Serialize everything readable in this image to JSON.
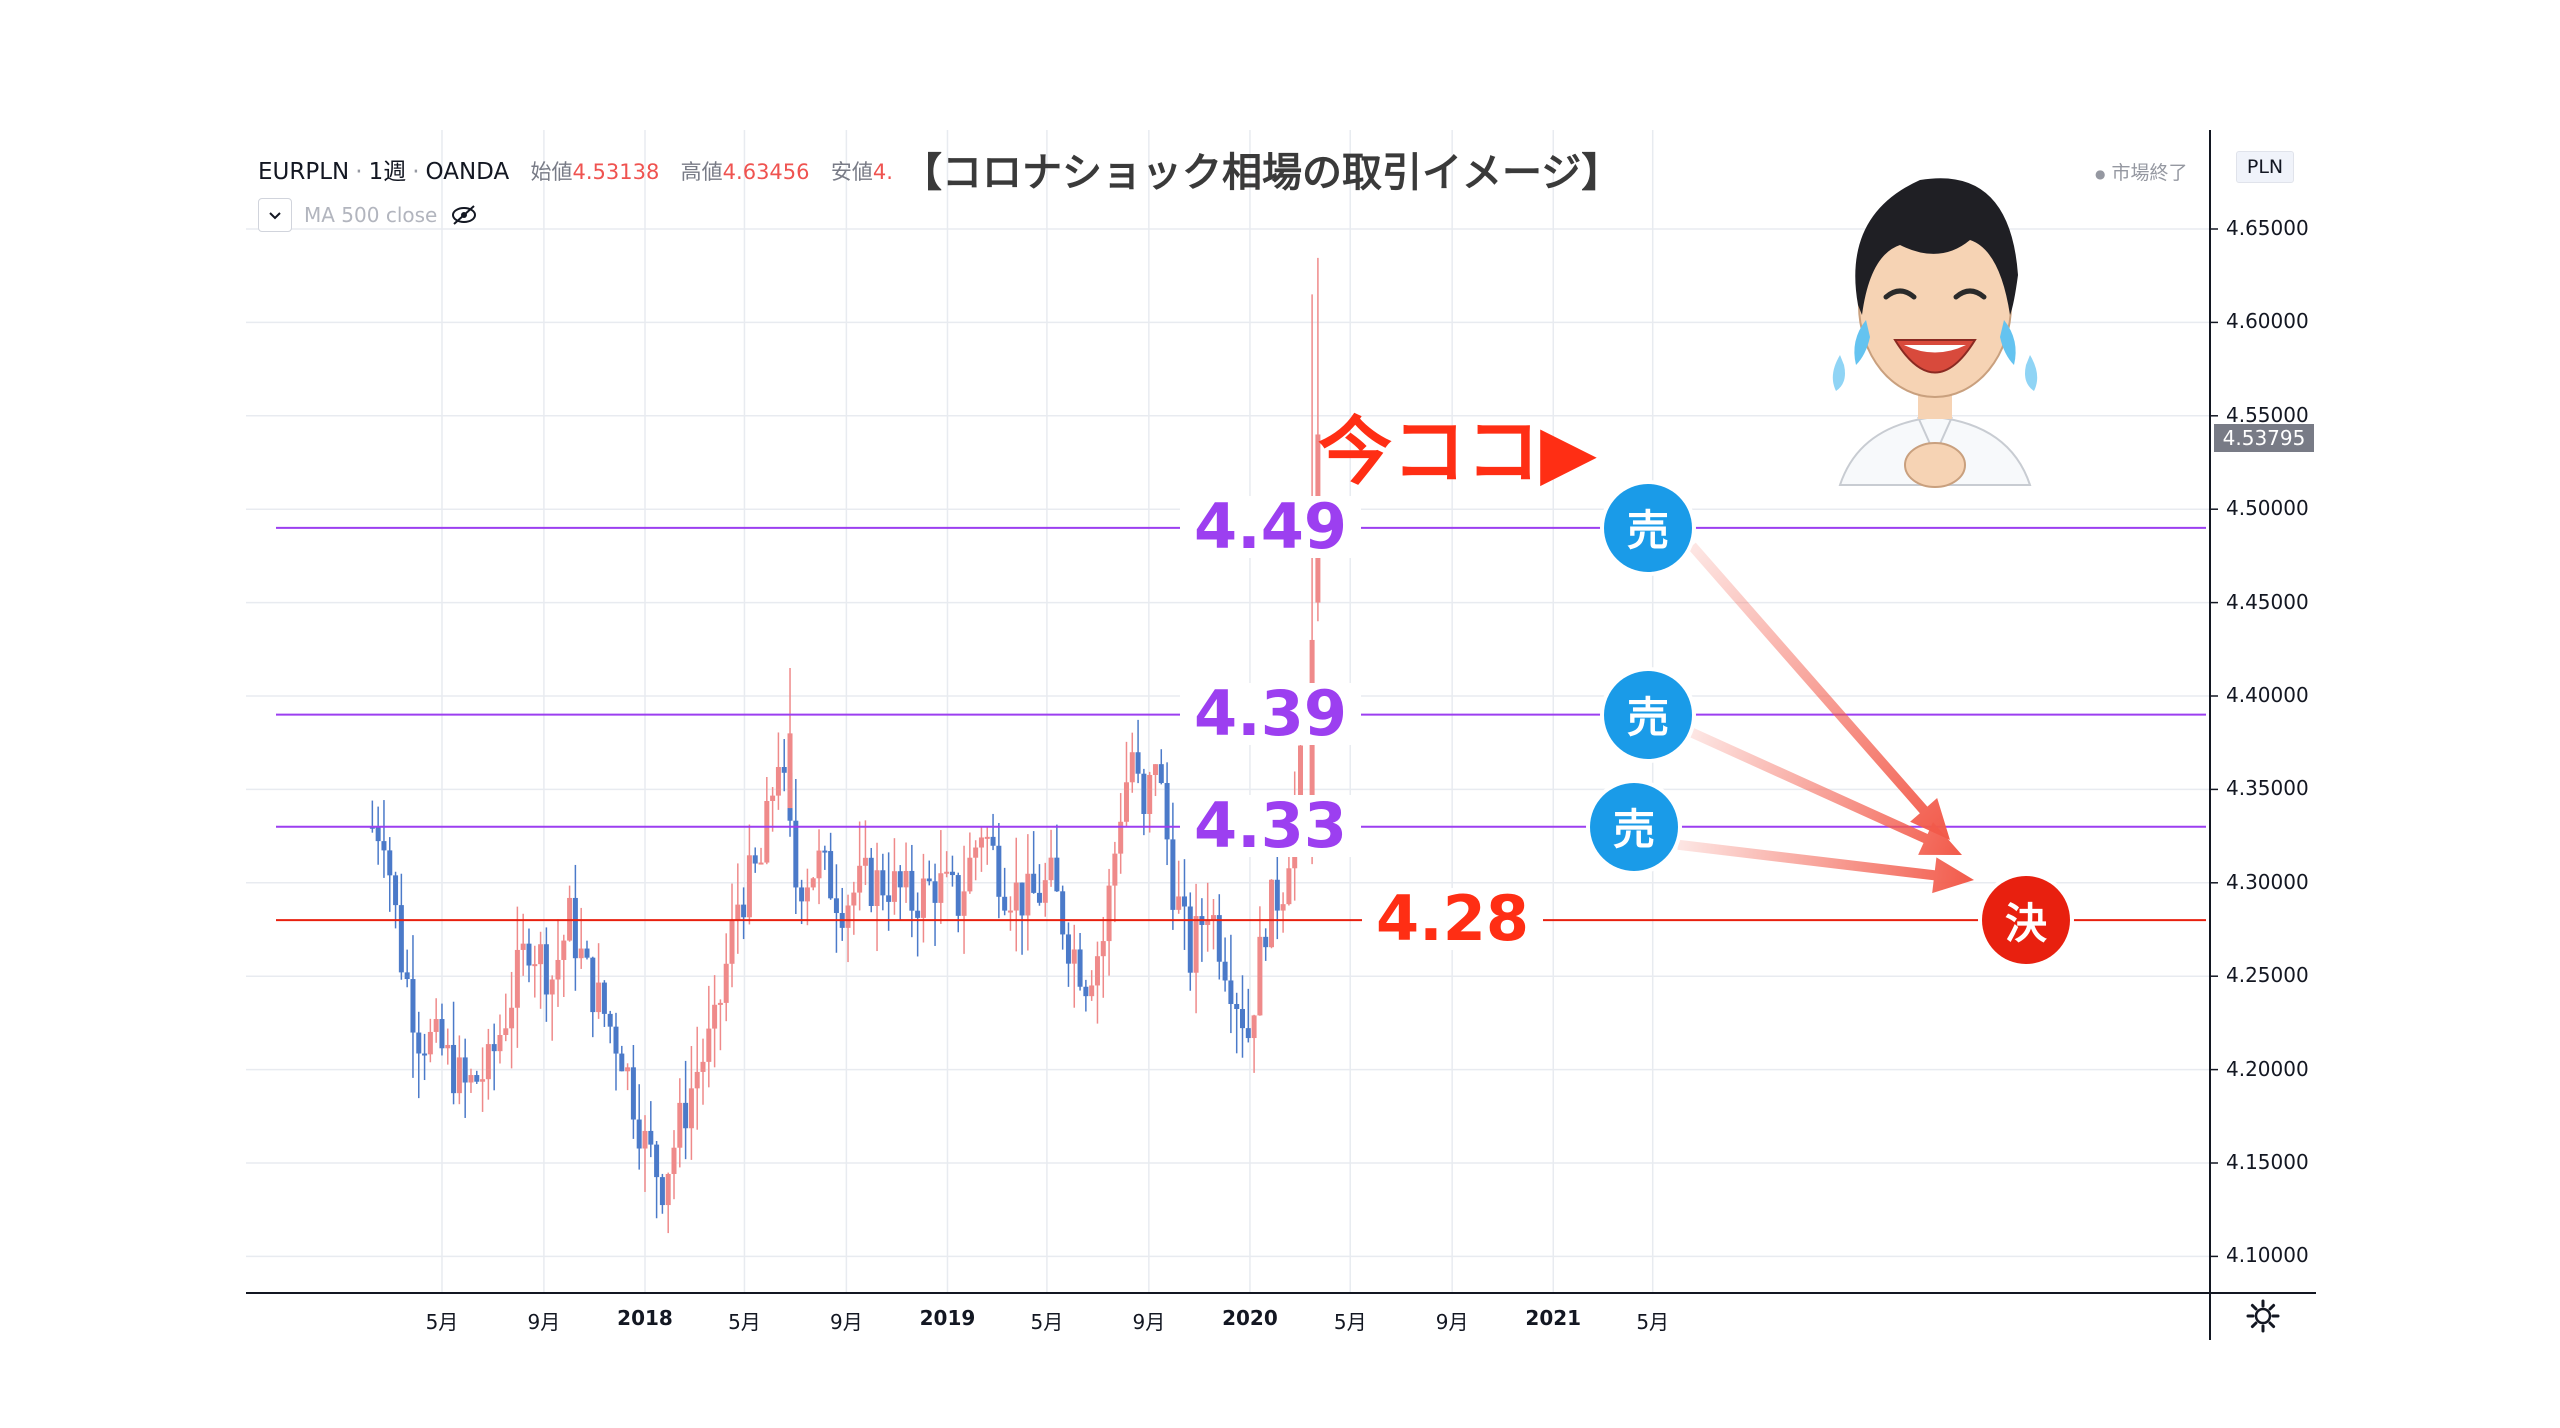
{
  "header": {
    "symbol": "EURPLN",
    "interval": "1週",
    "broker": "OANDA",
    "open_label": "始値",
    "open_value": "4.53138",
    "high_label": "高値",
    "high_value": "4.63456",
    "low_label": "安値",
    "low_value": "4.",
    "indicator": "MA 500 close"
  },
  "title": "【コロナショック相場の取引イメージ】",
  "market_status": "市場終了",
  "currency": "PLN",
  "current_price": "4.53795",
  "annotation_now": "今ココ▶",
  "colors": {
    "up": "#ef8a8a",
    "down": "#4b7ac9",
    "purple_line": "#9c3ff0",
    "red_line": "#e8200f",
    "sell_badge": "#1a9be8",
    "settle_badge": "#e8200f",
    "arrow": "#f25a4a"
  },
  "levels": [
    {
      "value": 4.49,
      "label": "4.49",
      "type": "sell",
      "badge": "売"
    },
    {
      "value": 4.39,
      "label": "4.39",
      "type": "sell",
      "badge": "売"
    },
    {
      "value": 4.33,
      "label": "4.33",
      "type": "sell",
      "badge": "売"
    },
    {
      "value": 4.28,
      "label": "4.28",
      "type": "settle",
      "badge": "決"
    }
  ],
  "chart_data": {
    "type": "candlestick",
    "title": "【コロナショック相場の取引イメージ】",
    "y_ticks": [
      "4.65000",
      "4.60000",
      "4.55000",
      "4.50000",
      "4.45000",
      "4.40000",
      "4.35000",
      "4.30000",
      "4.25000",
      "4.20000",
      "4.15000",
      "4.10000"
    ],
    "ylim": [
      4.09,
      4.67
    ],
    "x_ticks": [
      {
        "label": "5月",
        "date": "2017-05",
        "year": false
      },
      {
        "label": "9月",
        "date": "2017-09",
        "year": false
      },
      {
        "label": "2018",
        "date": "2018-01",
        "year": true
      },
      {
        "label": "5月",
        "date": "2018-05",
        "year": false
      },
      {
        "label": "9月",
        "date": "2018-09",
        "year": false
      },
      {
        "label": "2019",
        "date": "2019-01",
        "year": true
      },
      {
        "label": "5月",
        "date": "2019-05",
        "year": false
      },
      {
        "label": "9月",
        "date": "2019-09",
        "year": false
      },
      {
        "label": "2020",
        "date": "2020-01",
        "year": true
      },
      {
        "label": "5月",
        "date": "2020-05",
        "year": false
      },
      {
        "label": "9月",
        "date": "2020-09",
        "year": false
      },
      {
        "label": "2021",
        "date": "2021-01",
        "year": true
      },
      {
        "label": "5月",
        "date": "2021-05",
        "year": false
      }
    ],
    "close_path": [
      [
        "2017-02-06",
        4.33
      ],
      [
        "2017-02-27",
        4.33
      ],
      [
        "2017-03-20",
        4.26
      ],
      [
        "2017-04-10",
        4.22
      ],
      [
        "2017-05-08",
        4.21
      ],
      [
        "2017-06-05",
        4.19
      ],
      [
        "2017-07-03",
        4.2
      ],
      [
        "2017-07-31",
        4.24
      ],
      [
        "2017-08-21",
        4.27
      ],
      [
        "2017-09-18",
        4.25
      ],
      [
        "2017-10-09",
        4.28
      ],
      [
        "2017-10-30",
        4.25
      ],
      [
        "2017-11-20",
        4.23
      ],
      [
        "2017-12-11",
        4.21
      ],
      [
        "2018-01-08",
        4.16
      ],
      [
        "2018-01-29",
        4.14
      ],
      [
        "2018-02-19",
        4.17
      ],
      [
        "2018-03-12",
        4.2
      ],
      [
        "2018-04-02",
        4.22
      ],
      [
        "2018-04-30",
        4.29
      ],
      [
        "2018-05-28",
        4.31
      ],
      [
        "2018-06-18",
        4.37
      ],
      [
        "2018-07-09",
        4.3
      ],
      [
        "2018-08-06",
        4.31
      ],
      [
        "2018-09-03",
        4.29
      ],
      [
        "2018-10-01",
        4.3
      ],
      [
        "2018-10-29",
        4.3
      ],
      [
        "2018-11-26",
        4.29
      ],
      [
        "2018-12-24",
        4.3
      ],
      [
        "2019-01-21",
        4.29
      ],
      [
        "2019-02-18",
        4.33
      ],
      [
        "2019-03-18",
        4.3
      ],
      [
        "2019-04-15",
        4.29
      ],
      [
        "2019-05-13",
        4.3
      ],
      [
        "2019-06-03",
        4.27
      ],
      [
        "2019-06-24",
        4.25
      ],
      [
        "2019-07-15",
        4.27
      ],
      [
        "2019-08-05",
        4.34
      ],
      [
        "2019-08-19",
        4.37
      ],
      [
        "2019-09-02",
        4.33
      ],
      [
        "2019-09-16",
        4.37
      ],
      [
        "2019-10-07",
        4.3
      ],
      [
        "2019-10-28",
        4.26
      ],
      [
        "2019-11-18",
        4.29
      ],
      [
        "2019-12-16",
        4.25
      ],
      [
        "2020-01-06",
        4.22
      ],
      [
        "2020-01-27",
        4.28
      ],
      [
        "2020-02-17",
        4.3
      ],
      [
        "2020-03-09",
        4.36
      ],
      [
        "2020-03-16",
        4.45
      ],
      [
        "2020-03-23",
        4.54
      ]
    ],
    "highlight_candles": [
      {
        "date": "2018-06-25",
        "high": 4.415
      },
      {
        "date": "2020-03-16",
        "high": 4.615
      },
      {
        "date": "2020-03-23",
        "high": 4.63456
      }
    ]
  }
}
